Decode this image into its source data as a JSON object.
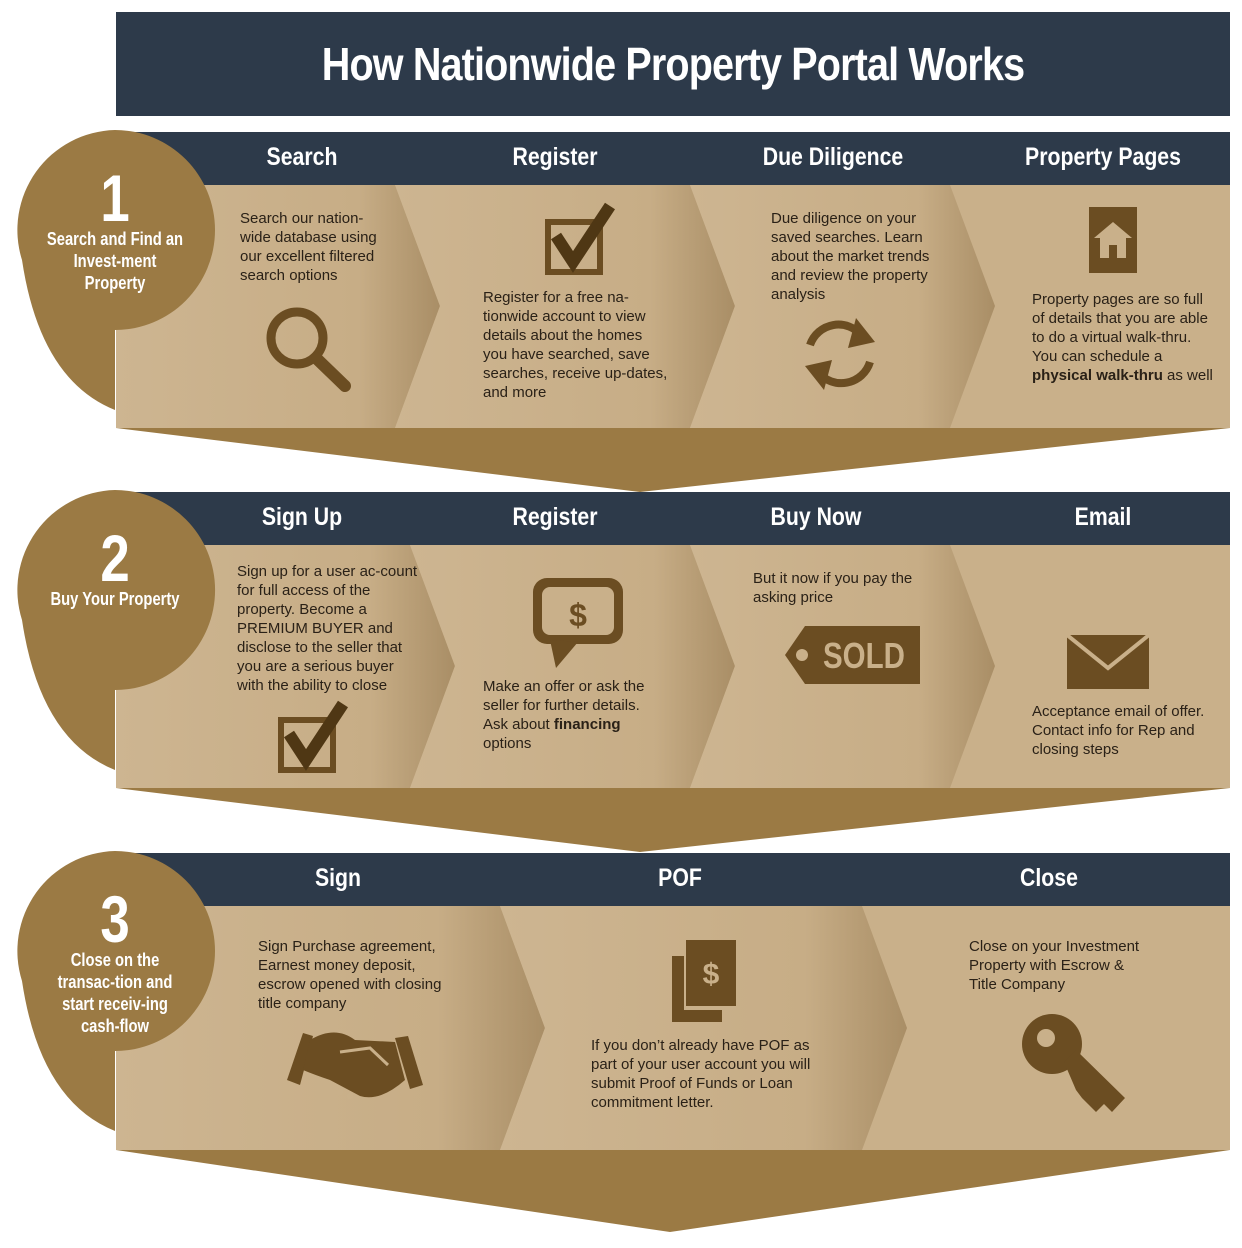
{
  "title": "How Nationwide Property Portal Works",
  "colors": {
    "navy": "#2d3a4a",
    "gold": "#9b7a44",
    "tan": "#c9b08a",
    "icon": "#6b4d22"
  },
  "section1": {
    "number": "1",
    "label": "Search and Find an Invest-ment Property",
    "steps": [
      {
        "title": "Search",
        "text": "Search our nation-wide database using our excellent filtered search options",
        "icon": "magnifier-icon"
      },
      {
        "title": "Register",
        "text": "Register for a free na-tionwide account to view details about the homes you have searched, save searches, receive up-dates, and more",
        "icon": "checkbox-icon"
      },
      {
        "title": "Due Diligence",
        "text": "Due diligence on your saved searches. Learn about the market trends and review the property analysis",
        "icon": "refresh-icon"
      },
      {
        "title": "Property Pages",
        "text_before": "Property pages are so full of details that you are able to do a virtual walk-thru. You can schedule a ",
        "text_bold": "physical walk-thru",
        "text_after": " as well",
        "icon": "house-icon"
      }
    ]
  },
  "section2": {
    "number": "2",
    "label": "Buy Your Property",
    "steps": [
      {
        "title": "Sign Up",
        "text": "Sign up for a user ac-count for full access of the property. Become a PREMIUM BUYER and disclose to the seller that you are a serious buyer with the ability to close",
        "icon": "checkbox-icon"
      },
      {
        "title": "Register",
        "text_before": "Make an offer or ask the seller for further details. Ask about ",
        "text_bold": "financing",
        "text_after": " options",
        "icon": "dollar-chat-icon"
      },
      {
        "title": "Buy Now",
        "text": "But it now if you pay the asking price",
        "icon": "sold-tag-icon",
        "tag_text": "SOLD"
      },
      {
        "title": "Email",
        "text": "Acceptance email of offer. Contact info for Rep and closing steps",
        "icon": "envelope-icon"
      }
    ]
  },
  "section3": {
    "number": "3",
    "label": "Close on the transac-tion and start receiv-ing cash-flow",
    "steps": [
      {
        "title": "Sign",
        "text": "Sign Purchase agreement, Earnest money deposit, escrow opened with closing title company",
        "icon": "handshake-icon"
      },
      {
        "title": "POF",
        "text": "If you don’t already have POF as part of your user account you will submit Proof of Funds or Loan commitment letter.",
        "icon": "money-icon"
      },
      {
        "title": "Close",
        "text": "Close on your Investment Property with Escrow & Title Company",
        "icon": "key-icon"
      }
    ]
  }
}
